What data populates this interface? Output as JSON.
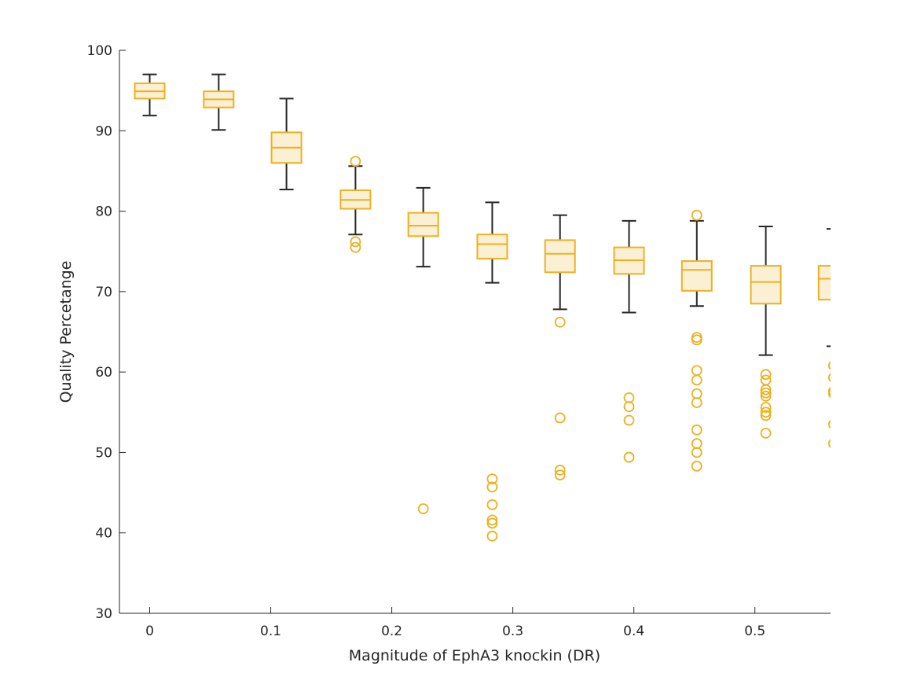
{
  "chart_data": {
    "type": "box",
    "title": "",
    "xlabel": "Magnitude of EphA3 knockin (DR)",
    "ylabel": "Quality Percetange",
    "xlim": [
      -0.025,
      0.5625
    ],
    "ylim": [
      30,
      100
    ],
    "xticks": [
      "0",
      "0.1",
      "0.2",
      "0.3",
      "0.4",
      "0.5"
    ],
    "yticks": [
      "30",
      "40",
      "50",
      "60",
      "70",
      "80",
      "90",
      "100"
    ],
    "grid": false,
    "colors": {
      "box": "#EDB120",
      "box_fill": "#FBF0D3",
      "whisker": "#262626",
      "axis": "#262626"
    },
    "boxes": [
      {
        "x": 0.0,
        "whisker_low": 91.9,
        "q1": 94.0,
        "median": 94.9,
        "q3": 95.9,
        "whisker_high": 97.0,
        "outliers": []
      },
      {
        "x": 0.057,
        "whisker_low": 90.1,
        "q1": 92.9,
        "median": 93.9,
        "q3": 94.9,
        "whisker_high": 97.0,
        "outliers": []
      },
      {
        "x": 0.113,
        "whisker_low": 82.7,
        "q1": 86.0,
        "median": 87.9,
        "q3": 89.8,
        "whisker_high": 94.0,
        "outliers": []
      },
      {
        "x": 0.17,
        "whisker_low": 77.1,
        "q1": 80.3,
        "median": 81.4,
        "q3": 82.6,
        "whisker_high": 85.6,
        "outliers": [
          86.2,
          76.2,
          75.5
        ]
      },
      {
        "x": 0.226,
        "whisker_low": 73.1,
        "q1": 76.9,
        "median": 78.2,
        "q3": 79.8,
        "whisker_high": 82.9,
        "outliers": [
          43.0
        ]
      },
      {
        "x": 0.283,
        "whisker_low": 71.1,
        "q1": 74.1,
        "median": 75.9,
        "q3": 77.1,
        "whisker_high": 81.1,
        "outliers": [
          46.7,
          45.7,
          43.5,
          41.6,
          41.2,
          39.6
        ]
      },
      {
        "x": 0.339,
        "whisker_low": 67.8,
        "q1": 72.4,
        "median": 74.7,
        "q3": 76.4,
        "whisker_high": 79.5,
        "outliers": [
          66.2,
          54.3,
          47.8,
          47.2
        ]
      },
      {
        "x": 0.396,
        "whisker_low": 67.4,
        "q1": 72.2,
        "median": 73.9,
        "q3": 75.5,
        "whisker_high": 78.8,
        "outliers": [
          56.8,
          55.7,
          54.0,
          49.4
        ]
      },
      {
        "x": 0.452,
        "whisker_low": 68.2,
        "q1": 70.1,
        "median": 72.7,
        "q3": 73.8,
        "whisker_high": 78.8,
        "outliers": [
          79.5,
          64.3,
          64.0,
          60.2,
          59.0,
          57.3,
          56.2,
          52.8,
          51.1,
          50.0,
          48.3
        ]
      },
      {
        "x": 0.509,
        "whisker_low": 62.1,
        "q1": 68.5,
        "median": 71.2,
        "q3": 73.2,
        "whisker_high": 78.1,
        "outliers": [
          59.7,
          59.0,
          57.8,
          57.4,
          57.0,
          55.6,
          55.0,
          54.6,
          52.4
        ]
      },
      {
        "x": 0.565,
        "whisker_low": 63.2,
        "q1": 69.0,
        "median": 71.6,
        "q3": 73.2,
        "whisker_high": 77.8,
        "outliers": [
          60.8,
          59.3,
          57.6,
          57.3,
          53.5,
          51.1
        ]
      }
    ]
  }
}
